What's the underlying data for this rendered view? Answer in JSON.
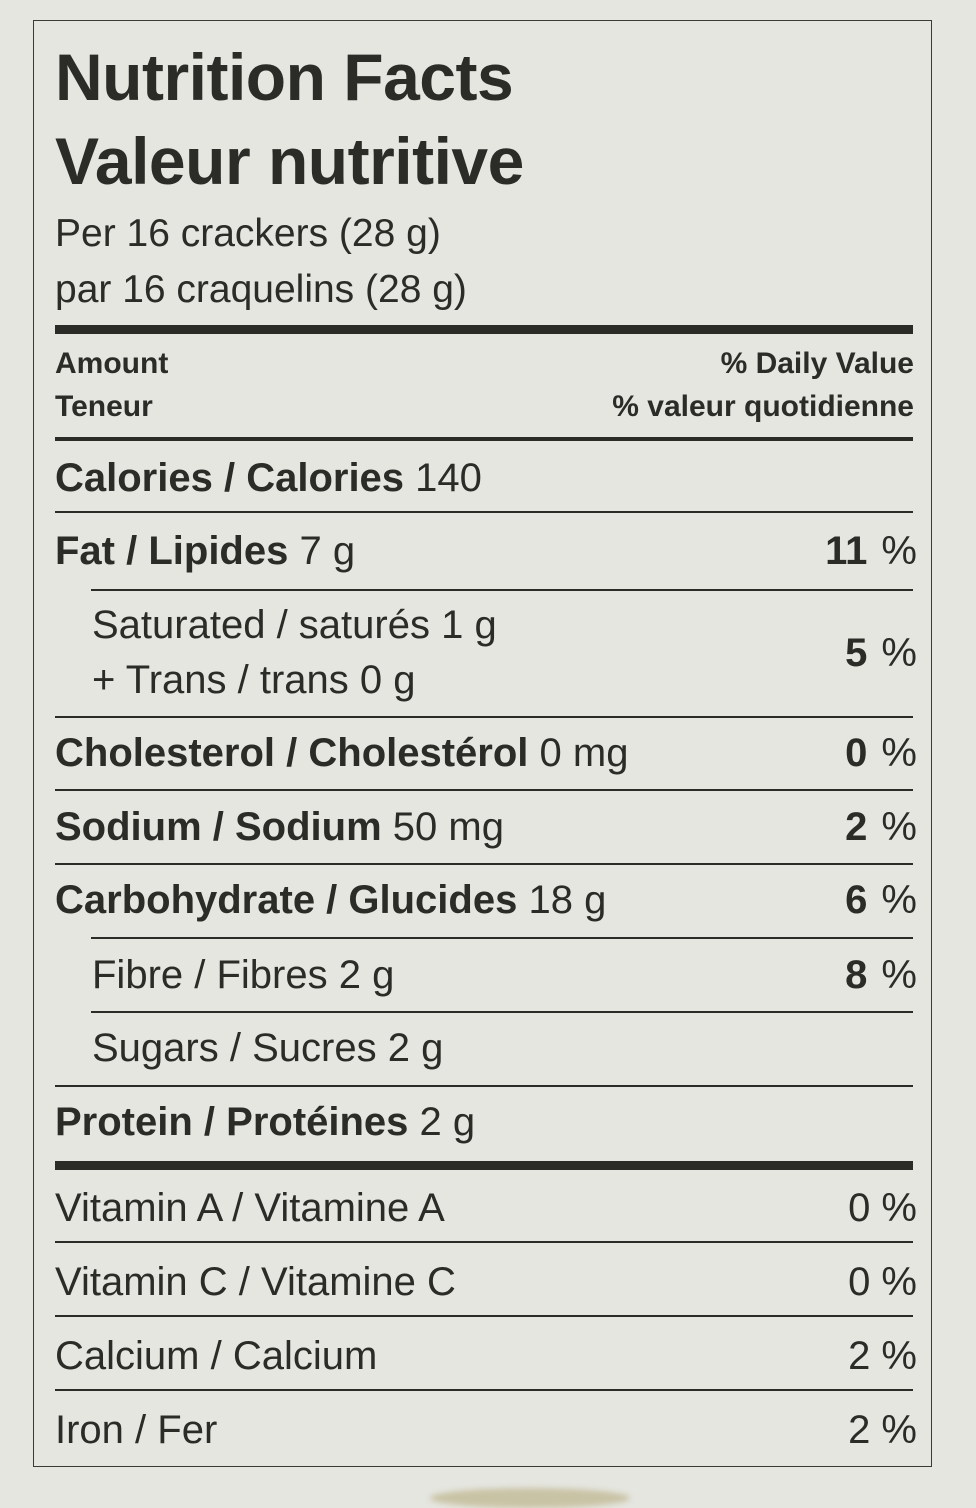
{
  "label": {
    "title_en": "Nutrition Facts",
    "title_fr": "Valeur nutritive",
    "serving_en": "Per 16 crackers (28 g)",
    "serving_fr": "par 16 craquelins (28 g)",
    "amount_en": "Amount",
    "amount_fr": "Teneur",
    "dv_en": "% Daily Value",
    "dv_fr": "% valeur quotidienne",
    "calories": {
      "name": "Calories / Calories",
      "amount": "140"
    },
    "nutrients": [
      {
        "name": "Fat / Lipides",
        "amount": "7 g",
        "dv": "11",
        "unit": "%"
      },
      {
        "name": "Saturated / saturés",
        "amount": "1 g",
        "name2": "+ Trans / trans",
        "amount2": "0 g",
        "dv": "5",
        "unit": "%"
      },
      {
        "name": "Cholesterol / Cholestérol",
        "amount": "0 mg",
        "dv": "0",
        "unit": "%"
      },
      {
        "name": "Sodium / Sodium",
        "amount": "50 mg",
        "dv": "2",
        "unit": "%"
      },
      {
        "name": "Carbohydrate / Glucides",
        "amount": "18 g",
        "dv": "6",
        "unit": "%"
      },
      {
        "name": "Fibre / Fibres",
        "amount": "2 g",
        "dv": "8",
        "unit": "%"
      },
      {
        "name": "Sugars / Sucres",
        "amount": "2 g"
      },
      {
        "name": "Protein / Protéines",
        "amount": "2 g"
      }
    ],
    "vitamins": [
      {
        "name": "Vitamin A / Vitamine A",
        "dv": "0 %"
      },
      {
        "name": "Vitamin C / Vitamine C",
        "dv": "0 %"
      },
      {
        "name": "Calcium / Calcium",
        "dv": "2 %"
      },
      {
        "name": "Iron / Fer",
        "dv": "2 %"
      }
    ]
  }
}
